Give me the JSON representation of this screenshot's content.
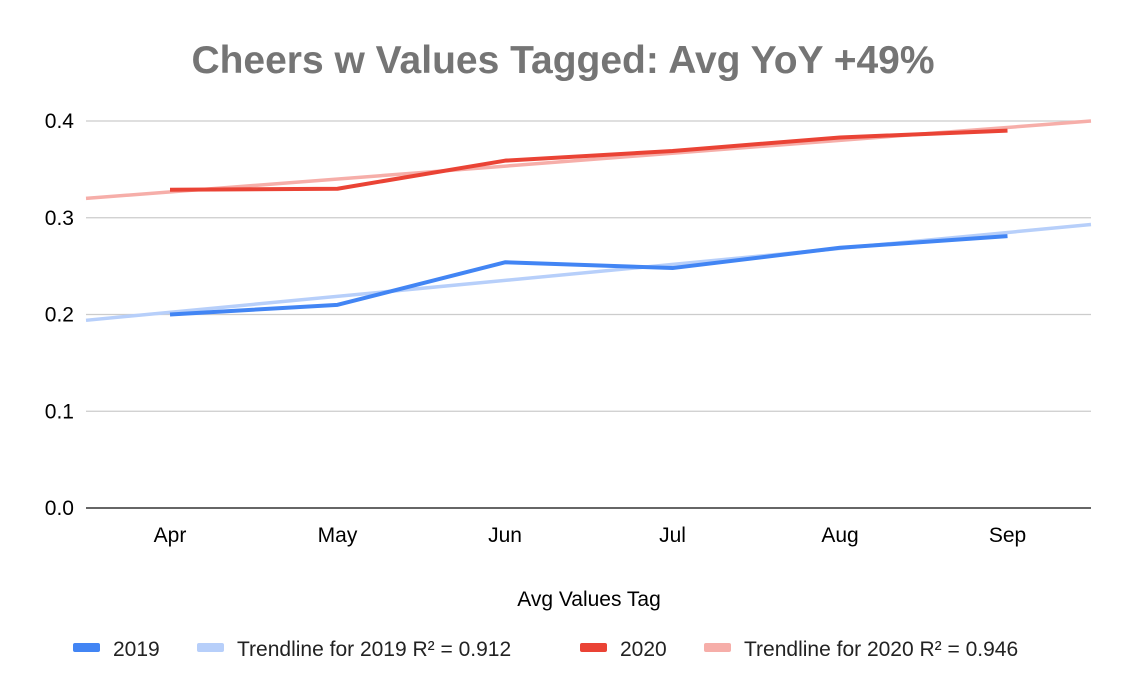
{
  "chart_data": {
    "type": "line",
    "title": "Cheers w Values Tagged:  Avg YoY +49%",
    "xlabel": "Avg Values Tag",
    "ylabel": "",
    "categories": [
      "Apr",
      "May",
      "Jun",
      "Jul",
      "Aug",
      "Sep"
    ],
    "ylim": [
      0,
      0.4
    ],
    "yticks": [
      0.0,
      0.1,
      0.2,
      0.3,
      0.4
    ],
    "ytick_labels": [
      "0.0",
      "0.1",
      "0.2",
      "0.3",
      "0.4"
    ],
    "grid": true,
    "legend_position": "bottom",
    "series": [
      {
        "name": "2019",
        "legend_label": "2019",
        "color": "#4285f4",
        "kind": "data",
        "values": [
          0.2,
          0.21,
          0.254,
          0.248,
          0.269,
          0.281
        ]
      },
      {
        "name": "Trendline for 2019",
        "legend_label": "Trendline for 2019 R² = 0.912",
        "color": "#b7cffa",
        "kind": "trendline",
        "r_squared": 0.912,
        "trend_start": 0.194,
        "trend_end": 0.293
      },
      {
        "name": "2020",
        "legend_label": "2020",
        "color": "#ea4335",
        "kind": "data",
        "values": [
          0.329,
          0.33,
          0.359,
          0.369,
          0.383,
          0.39
        ]
      },
      {
        "name": "Trendline for 2020",
        "legend_label": "Trendline for 2020 R² = 0.946",
        "color": "#f6aea9",
        "kind": "trendline",
        "r_squared": 0.946,
        "trend_start": 0.32,
        "trend_end": 0.4
      }
    ]
  }
}
